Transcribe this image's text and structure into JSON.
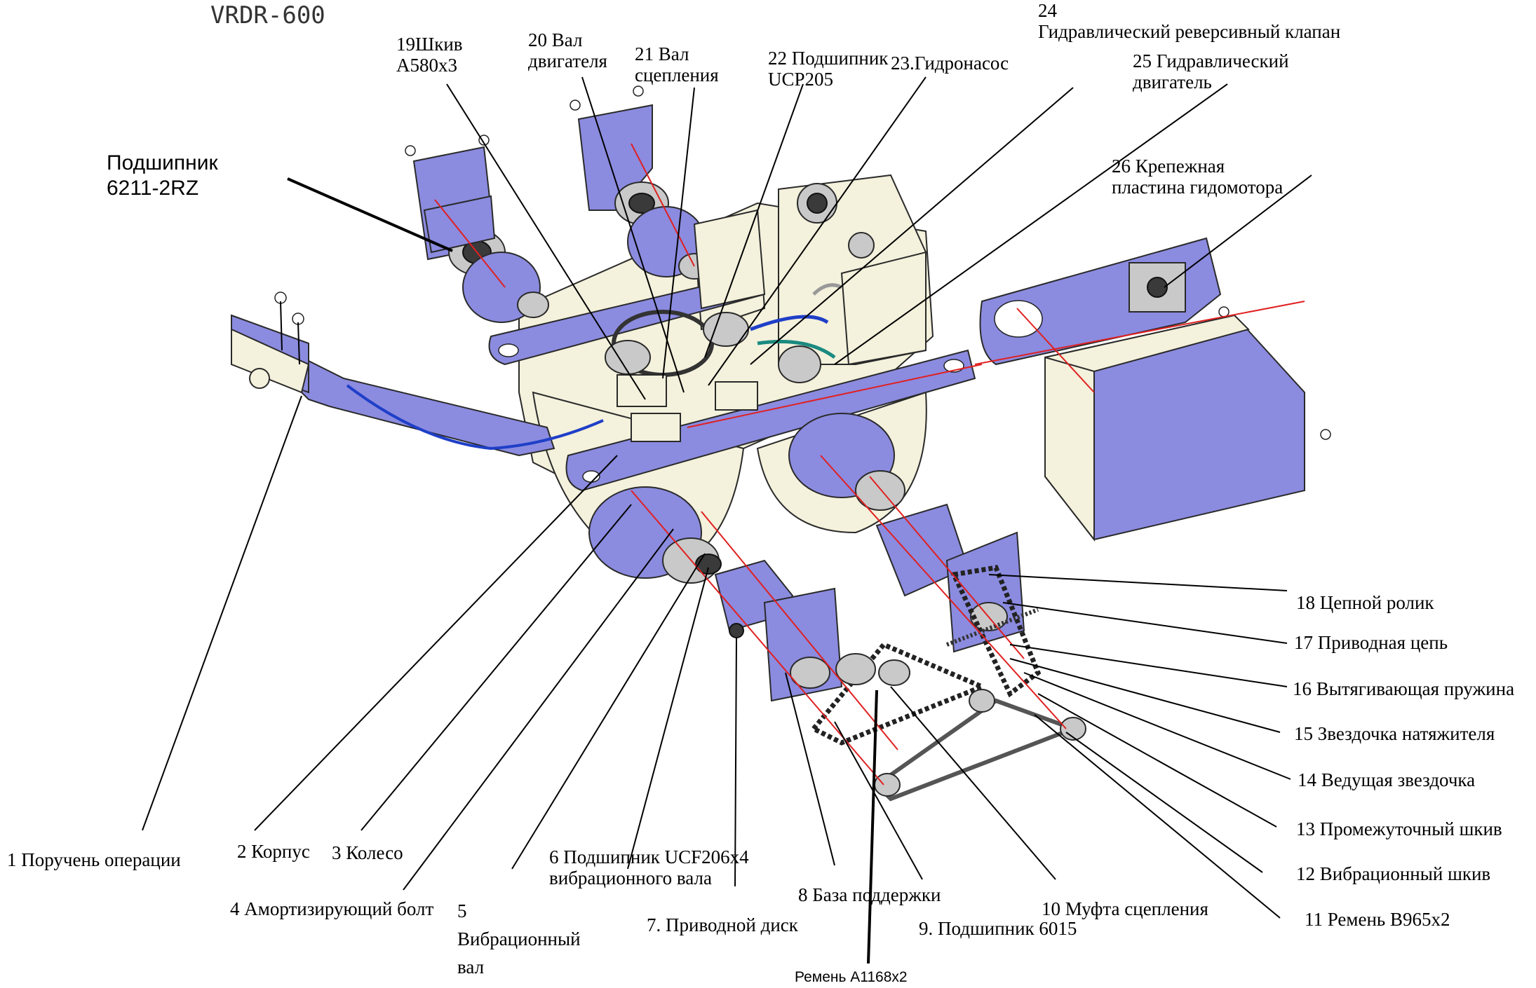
{
  "title": "VRDR-600",
  "labels": {
    "bearing_main": "Подшипник\n6211-2RZ",
    "l19": "19Шкив\nA580x3",
    "l20": "20 Вал\nдвигателя",
    "l21": "21 Вал\nсцепления",
    "l22": "22 Подшипник\nUCP205",
    "l23": "23.Гидронасос",
    "l24": "24\nГидравлический реверсивный клапан",
    "l25": "25 Гидравлический\nдвигатель",
    "l26": "26 Крепежная\nпластина гидомотора",
    "l1": "1 Поручень операции",
    "l2": "2 Корпус",
    "l3": "3 Колесо",
    "l4": "4 Амортизирующий болт",
    "l5": "5\nВибрационный\nвал",
    "l6": "6 Подшипник UCF206x4\nвибрационного вала",
    "l7": "7. Приводной диск",
    "l8": "8 База поддержки",
    "l9": "9. Подшипник 6015",
    "l10": "10 Муфта сцепления",
    "l11": "11 Ремень B965x2",
    "l12": "12 Вибрационный шкив",
    "l13": "13 Промежуточный шкив",
    "l14": "14 Ведущая звездочка",
    "l15": "15 Звездочка натяжителя",
    "l16": "16 Вытягивающая пружина",
    "l17": "17 Приводная цепь",
    "l18": "18 Цепной ролик",
    "belt": "Ремень A1168x2"
  },
  "colors": {
    "part_fill": "#8b8be0",
    "body_fill": "#f4f1dc",
    "stroke": "#2a2a2a",
    "axis_red": "#e02020",
    "hose_blue": "#1f3fc8",
    "hose_teal": "#1b8a80"
  }
}
